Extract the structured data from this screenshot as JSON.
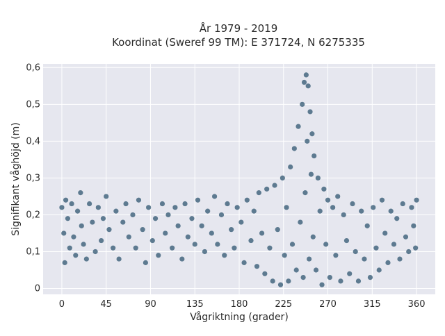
{
  "chart_data": {
    "type": "scatter",
    "title_line1": "År 1979 - 2019",
    "title_line2": "Koordinat (Sweref 99 TM): E 371724, N 6275335",
    "xlabel": "Vågriktning (grader)",
    "ylabel": "Signifikant våghöjd (m)",
    "xlim": [
      -19,
      379
    ],
    "ylim": [
      -0.016,
      0.61
    ],
    "x_ticks": [
      0,
      45,
      90,
      135,
      180,
      225,
      270,
      315,
      360
    ],
    "x_tick_labels": [
      "0",
      "45",
      "90",
      "135",
      "180",
      "225",
      "270",
      "315",
      "360"
    ],
    "y_ticks": [
      0,
      0.1,
      0.2,
      0.3,
      0.4,
      0.5,
      0.6
    ],
    "y_tick_labels": [
      "0",
      "0,1",
      "0,2",
      "0,3",
      "0,4",
      "0,5",
      "0,6"
    ],
    "grid": true,
    "marker_color": "#2f5570",
    "plot_background": "#e6e7ef",
    "series": [
      {
        "points": [
          [
            0,
            0.22
          ],
          [
            2,
            0.15
          ],
          [
            3,
            0.07
          ],
          [
            4,
            0.24
          ],
          [
            6,
            0.19
          ],
          [
            8,
            0.11
          ],
          [
            10,
            0.23
          ],
          [
            12,
            0.14
          ],
          [
            14,
            0.09
          ],
          [
            16,
            0.21
          ],
          [
            19,
            0.26
          ],
          [
            20,
            0.17
          ],
          [
            22,
            0.12
          ],
          [
            25,
            0.08
          ],
          [
            28,
            0.23
          ],
          [
            31,
            0.18
          ],
          [
            34,
            0.1
          ],
          [
            37,
            0.22
          ],
          [
            40,
            0.13
          ],
          [
            42,
            0.19
          ],
          [
            45,
            0.25
          ],
          [
            48,
            0.16
          ],
          [
            52,
            0.11
          ],
          [
            55,
            0.21
          ],
          [
            58,
            0.08
          ],
          [
            62,
            0.18
          ],
          [
            65,
            0.23
          ],
          [
            68,
            0.14
          ],
          [
            72,
            0.2
          ],
          [
            75,
            0.11
          ],
          [
            78,
            0.24
          ],
          [
            82,
            0.16
          ],
          [
            85,
            0.07
          ],
          [
            88,
            0.22
          ],
          [
            92,
            0.13
          ],
          [
            95,
            0.19
          ],
          [
            98,
            0.09
          ],
          [
            102,
            0.23
          ],
          [
            105,
            0.15
          ],
          [
            108,
            0.2
          ],
          [
            112,
            0.11
          ],
          [
            115,
            0.22
          ],
          [
            118,
            0.17
          ],
          [
            122,
            0.08
          ],
          [
            125,
            0.23
          ],
          [
            128,
            0.14
          ],
          [
            132,
            0.19
          ],
          [
            135,
            0.12
          ],
          [
            138,
            0.24
          ],
          [
            142,
            0.17
          ],
          [
            145,
            0.1
          ],
          [
            148,
            0.21
          ],
          [
            152,
            0.15
          ],
          [
            155,
            0.25
          ],
          [
            158,
            0.12
          ],
          [
            162,
            0.2
          ],
          [
            165,
            0.09
          ],
          [
            168,
            0.23
          ],
          [
            172,
            0.16
          ],
          [
            175,
            0.11
          ],
          [
            178,
            0.22
          ],
          [
            182,
            0.18
          ],
          [
            185,
            0.07
          ],
          [
            188,
            0.24
          ],
          [
            192,
            0.13
          ],
          [
            195,
            0.21
          ],
          [
            198,
            0.06
          ],
          [
            200,
            0.26
          ],
          [
            203,
            0.15
          ],
          [
            206,
            0.04
          ],
          [
            208,
            0.27
          ],
          [
            211,
            0.11
          ],
          [
            214,
            0.02
          ],
          [
            216,
            0.28
          ],
          [
            219,
            0.16
          ],
          [
            222,
            0.01
          ],
          [
            224,
            0.3
          ],
          [
            226,
            0.09
          ],
          [
            228,
            0.22
          ],
          [
            230,
            0.02
          ],
          [
            232,
            0.33
          ],
          [
            234,
            0.12
          ],
          [
            236,
            0.38
          ],
          [
            238,
            0.05
          ],
          [
            240,
            0.44
          ],
          [
            242,
            0.18
          ],
          [
            244,
            0.5
          ],
          [
            245,
            0.03
          ],
          [
            246,
            0.56
          ],
          [
            247,
            0.26
          ],
          [
            248,
            0.58
          ],
          [
            249,
            0.4
          ],
          [
            250,
            0.55
          ],
          [
            251,
            0.08
          ],
          [
            252,
            0.48
          ],
          [
            253,
            0.31
          ],
          [
            254,
            0.42
          ],
          [
            255,
            0.14
          ],
          [
            256,
            0.36
          ],
          [
            258,
            0.05
          ],
          [
            260,
            0.3
          ],
          [
            262,
            0.21
          ],
          [
            264,
            0.01
          ],
          [
            266,
            0.27
          ],
          [
            268,
            0.12
          ],
          [
            270,
            0.24
          ],
          [
            272,
            0.03
          ],
          [
            275,
            0.22
          ],
          [
            278,
            0.09
          ],
          [
            280,
            0.25
          ],
          [
            283,
            0.02
          ],
          [
            286,
            0.2
          ],
          [
            289,
            0.13
          ],
          [
            292,
            0.04
          ],
          [
            295,
            0.23
          ],
          [
            298,
            0.1
          ],
          [
            301,
            0.02
          ],
          [
            304,
            0.21
          ],
          [
            307,
            0.08
          ],
          [
            310,
            0.17
          ],
          [
            313,
            0.03
          ],
          [
            316,
            0.22
          ],
          [
            319,
            0.11
          ],
          [
            322,
            0.05
          ],
          [
            325,
            0.24
          ],
          [
            328,
            0.15
          ],
          [
            331,
            0.07
          ],
          [
            334,
            0.21
          ],
          [
            337,
            0.12
          ],
          [
            340,
            0.19
          ],
          [
            343,
            0.08
          ],
          [
            346,
            0.23
          ],
          [
            349,
            0.14
          ],
          [
            352,
            0.1
          ],
          [
            355,
            0.22
          ],
          [
            357,
            0.17
          ],
          [
            359,
            0.11
          ],
          [
            360,
            0.24
          ]
        ]
      }
    ]
  }
}
